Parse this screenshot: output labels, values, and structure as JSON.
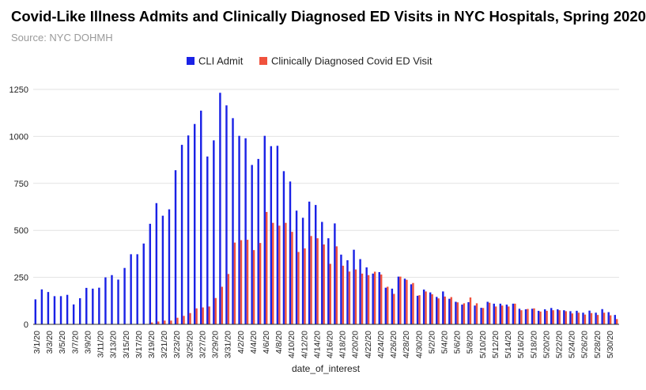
{
  "chart_data": {
    "type": "bar",
    "title": "Covid-Like Illness Admits and Clinically Diagnosed ED Visits in NYC Hospitals, Spring 2020",
    "subtitle": "Source: NYC DOHMH",
    "xlabel": "date_of_interest",
    "ylabel": "",
    "ylim": [
      0,
      1250
    ],
    "yticks": [
      0,
      250,
      500,
      750,
      1000,
      1250
    ],
    "legend_position": "top-center",
    "grid": true,
    "colors": {
      "cli_admit": "#1a22e6",
      "covid_ed": "#f0523d",
      "grid": "#e2e2e2"
    },
    "categories": [
      "3/1/20",
      "3/2/20",
      "3/3/20",
      "3/4/20",
      "3/5/20",
      "3/6/20",
      "3/7/20",
      "3/8/20",
      "3/9/20",
      "3/10/20",
      "3/11/20",
      "3/12/20",
      "3/13/20",
      "3/14/20",
      "3/15/20",
      "3/16/20",
      "3/17/20",
      "3/18/20",
      "3/19/20",
      "3/20/20",
      "3/21/20",
      "3/22/20",
      "3/23/20",
      "3/24/20",
      "3/25/20",
      "3/26/20",
      "3/27/20",
      "3/28/20",
      "3/29/20",
      "3/30/20",
      "3/31/20",
      "4/1/20",
      "4/2/20",
      "4/3/20",
      "4/4/20",
      "4/5/20",
      "4/6/20",
      "4/7/20",
      "4/8/20",
      "4/9/20",
      "4/10/20",
      "4/11/20",
      "4/12/20",
      "4/13/20",
      "4/14/20",
      "4/15/20",
      "4/16/20",
      "4/17/20",
      "4/18/20",
      "4/19/20",
      "4/20/20",
      "4/21/20",
      "4/22/20",
      "4/23/20",
      "4/24/20",
      "4/25/20",
      "4/26/20",
      "4/27/20",
      "4/28/20",
      "4/29/20",
      "4/30/20",
      "5/1/20",
      "5/2/20",
      "5/3/20",
      "5/4/20",
      "5/5/20",
      "5/6/20",
      "5/7/20",
      "5/8/20",
      "5/9/20",
      "5/10/20",
      "5/11/20",
      "5/12/20",
      "5/13/20",
      "5/14/20",
      "5/15/20",
      "5/16/20",
      "5/17/20",
      "5/18/20",
      "5/19/20",
      "5/20/20",
      "5/21/20",
      "5/22/20",
      "5/23/20",
      "5/24/20",
      "5/25/20",
      "5/26/20",
      "5/27/20",
      "5/28/20",
      "5/29/20",
      "5/30/20",
      "5/31/20"
    ],
    "xtick_labels": [
      "3/1/20",
      "3/3/20",
      "3/5/20",
      "3/7/20",
      "3/9/20",
      "3/11/20",
      "3/13/20",
      "3/15/20",
      "3/17/20",
      "3/19/20",
      "3/21/20",
      "3/23/20",
      "3/25/20",
      "3/27/20",
      "3/29/20",
      "3/31/20",
      "4/2/20",
      "4/4/20",
      "4/6/20",
      "4/8/20",
      "4/10/20",
      "4/12/20",
      "4/14/20",
      "4/16/20",
      "4/18/20",
      "4/20/20",
      "4/22/20",
      "4/24/20",
      "4/26/20",
      "4/28/20",
      "4/30/20",
      "5/2/20",
      "5/4/20",
      "5/6/20",
      "5/8/20",
      "5/10/20",
      "5/12/20",
      "5/14/20",
      "5/16/20",
      "5/18/20",
      "5/20/20",
      "5/22/20",
      "5/24/20",
      "5/26/20",
      "5/28/20",
      "5/30/20"
    ],
    "series": [
      {
        "name": "CLI Admit",
        "key": "cli_admit",
        "values": [
          133,
          186,
          172,
          150,
          150,
          157,
          106,
          139,
          194,
          190,
          195,
          250,
          262,
          238,
          300,
          373,
          373,
          430,
          535,
          645,
          578,
          612,
          820,
          955,
          1005,
          1066,
          1137,
          893,
          979,
          1232,
          1165,
          1097,
          1003,
          990,
          848,
          880,
          1003,
          948,
          950,
          815,
          760,
          605,
          567,
          653,
          635,
          545,
          458,
          537,
          371,
          341,
          397,
          347,
          303,
          270,
          278,
          195,
          190,
          254,
          243,
          213,
          152,
          185,
          170,
          146,
          175,
          136,
          120,
          105,
          118,
          100,
          88,
          120,
          110,
          110,
          105,
          110,
          83,
          80,
          83,
          72,
          80,
          87,
          80,
          75,
          70,
          72,
          62,
          73,
          62,
          81,
          65,
          50
        ]
      },
      {
        "name": "Clinically Diagnosed Covid ED Visit",
        "key": "covid_ed",
        "values": [
          0,
          0,
          0,
          0,
          0,
          0,
          0,
          0,
          0,
          0,
          0,
          0,
          0,
          0,
          0,
          0,
          0,
          0,
          10,
          15,
          20,
          20,
          35,
          45,
          60,
          85,
          90,
          95,
          140,
          200,
          268,
          435,
          448,
          450,
          395,
          433,
          598,
          540,
          525,
          540,
          492,
          385,
          404,
          470,
          458,
          425,
          322,
          415,
          312,
          281,
          292,
          270,
          262,
          280,
          265,
          200,
          162,
          254,
          237,
          220,
          155,
          175,
          160,
          138,
          148,
          145,
          117,
          112,
          143,
          112,
          87,
          115,
          95,
          100,
          95,
          110,
          75,
          82,
          85,
          68,
          72,
          75,
          75,
          70,
          58,
          62,
          52,
          60,
          50,
          62,
          48,
          28
        ]
      }
    ]
  }
}
